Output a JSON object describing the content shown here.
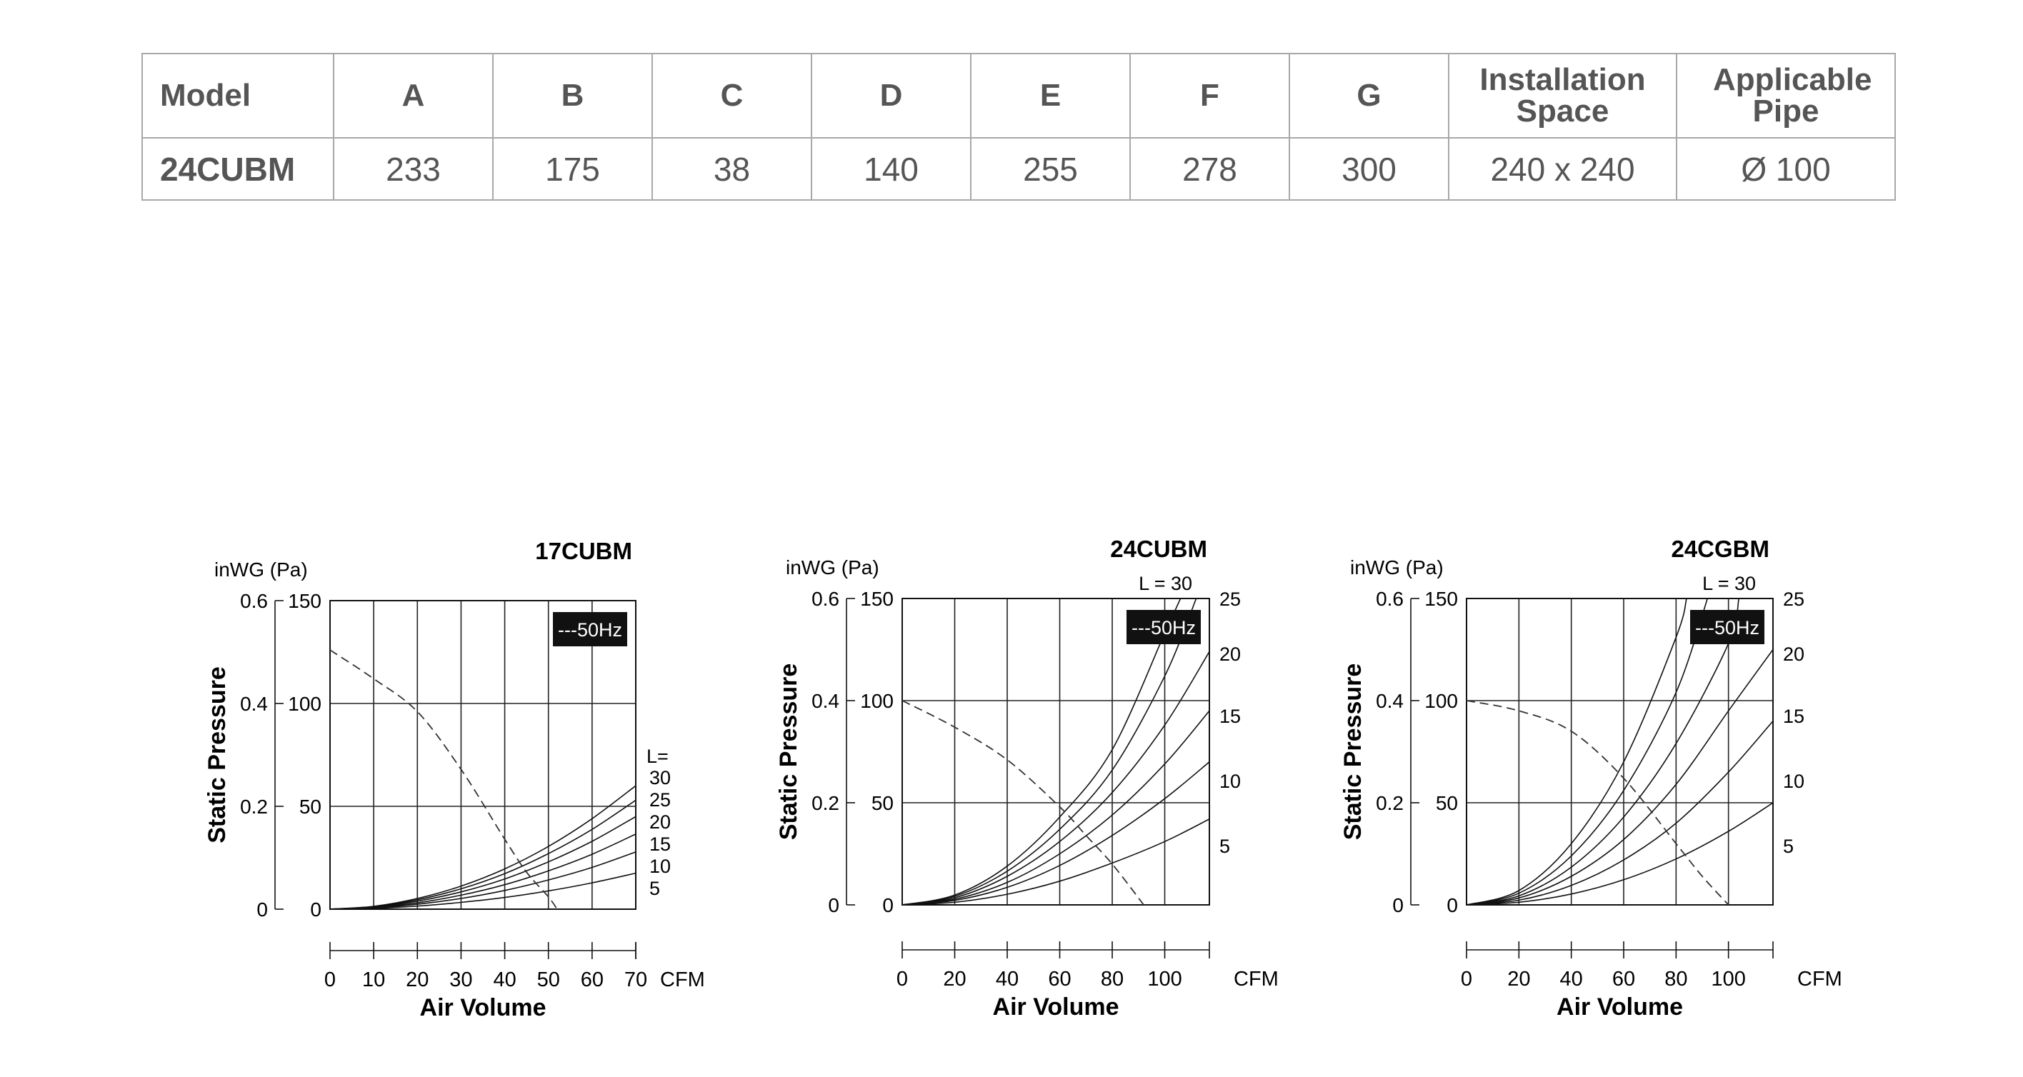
{
  "table": {
    "headers": [
      "Model",
      "A",
      "B",
      "C",
      "D",
      "E",
      "F",
      "G",
      "Installation Space",
      "Applicable Pipe"
    ],
    "rows": [
      [
        "24CUBM",
        "233",
        "175",
        "38",
        "140",
        "255",
        "278",
        "300",
        "240 x 240",
        "Ø 100"
      ]
    ]
  },
  "chart_data": [
    {
      "type": "line",
      "title": "17CUBM",
      "xlabel": "Air Volume",
      "x_unit": "CFM",
      "ylabel": "Static Pressure",
      "y_unit_label": "inWG (Pa)",
      "xlim": [
        0,
        70
      ],
      "ylim": [
        0,
        150
      ],
      "x_ticks": [
        0,
        10,
        20,
        30,
        40,
        50,
        60,
        70
      ],
      "y_ticks_pa": [
        0,
        50,
        100,
        150
      ],
      "y_ticks_inwg": [
        "0",
        "0.2",
        "0.4",
        "0.6"
      ],
      "grid": true,
      "legend_box": "---50Hz",
      "curve_label_prefix": "L=",
      "fan_curve": {
        "name": "---50Hz",
        "style": "dashed",
        "x": [
          0,
          10,
          20,
          30,
          40,
          45,
          50,
          52
        ],
        "y": [
          126,
          112,
          96,
          68,
          34,
          18,
          6,
          0
        ]
      },
      "series": [
        {
          "label": "30",
          "x": [
            0,
            10,
            20,
            30,
            40,
            50,
            60,
            70
          ],
          "y": [
            0,
            1.4,
            5.2,
            11.2,
            19.6,
            30.5,
            44,
            60
          ]
        },
        {
          "label": "25",
          "x": [
            0,
            10,
            20,
            30,
            40,
            50,
            60,
            70
          ],
          "y": [
            0,
            1.2,
            4.6,
            9.9,
            17.3,
            27,
            38.8,
            53
          ]
        },
        {
          "label": "20",
          "x": [
            0,
            10,
            20,
            30,
            40,
            50,
            60,
            70
          ],
          "y": [
            0,
            1,
            3.9,
            8.4,
            14.7,
            23,
            33,
            45
          ]
        },
        {
          "label": "15",
          "x": [
            0,
            10,
            20,
            30,
            40,
            50,
            60,
            70
          ],
          "y": [
            0,
            0.8,
            3.1,
            6.8,
            11.9,
            18.6,
            26.7,
            36.5
          ]
        },
        {
          "label": "10",
          "x": [
            0,
            10,
            20,
            30,
            40,
            50,
            60,
            70
          ],
          "y": [
            0,
            0.6,
            2.4,
            5.2,
            9.1,
            14.2,
            20.3,
            27.8
          ]
        },
        {
          "label": "5",
          "x": [
            0,
            10,
            20,
            30,
            40,
            50,
            60,
            70
          ],
          "y": [
            0,
            0.4,
            1.5,
            3.3,
            5.7,
            8.9,
            12.8,
            17.5
          ]
        }
      ]
    },
    {
      "type": "line",
      "title": "24CUBM",
      "xlabel": "Air Volume",
      "x_unit": "CFM",
      "ylabel": "Static Pressure",
      "y_unit_label": "inWG (Pa)",
      "xlim": [
        0,
        117
      ],
      "ylim": [
        0,
        150
      ],
      "x_ticks": [
        0,
        20,
        40,
        60,
        80,
        100
      ],
      "y_ticks_pa": [
        0,
        50,
        100,
        150
      ],
      "y_ticks_inwg": [
        "0",
        "0.2",
        "0.4",
        "0.6"
      ],
      "grid": true,
      "legend_box": "---50Hz",
      "curve_label_prefix": "L =",
      "fan_curve": {
        "name": "---50Hz",
        "style": "dashed",
        "x": [
          0,
          20,
          40,
          60,
          70,
          80,
          92
        ],
        "y": [
          100,
          87,
          71,
          48,
          34,
          20,
          0
        ]
      },
      "series": [
        {
          "label": "30",
          "x": [
            0,
            20,
            40,
            60,
            80,
            100,
            106
          ],
          "y": [
            0,
            4.8,
            19,
            43,
            76,
            133,
            150
          ]
        },
        {
          "label": "25",
          "x": [
            0,
            20,
            40,
            60,
            80,
            100,
            112
          ],
          "y": [
            0,
            4.2,
            16.5,
            37,
            66,
            112,
            150
          ]
        },
        {
          "label": "20",
          "x": [
            0,
            20,
            40,
            60,
            80,
            100,
            117
          ],
          "y": [
            0,
            3.5,
            14,
            31,
            55,
            88,
            124
          ]
        },
        {
          "label": "15",
          "x": [
            0,
            20,
            40,
            60,
            80,
            100,
            117
          ],
          "y": [
            0,
            2.8,
            11,
            25,
            44,
            69,
            95
          ]
        },
        {
          "label": "10",
          "x": [
            0,
            20,
            40,
            60,
            80,
            100,
            117
          ],
          "y": [
            0,
            2.2,
            8.6,
            19.3,
            34,
            52,
            70
          ]
        },
        {
          "label": "5",
          "x": [
            0,
            20,
            40,
            60,
            80,
            100,
            117
          ],
          "y": [
            0,
            1.3,
            5.2,
            11.6,
            20.5,
            31,
            42
          ]
        }
      ]
    },
    {
      "type": "line",
      "title": "24CGBM",
      "xlabel": "Air Volume",
      "x_unit": "CFM",
      "ylabel": "Static Pressure",
      "y_unit_label": "inWG (Pa)",
      "xlim": [
        0,
        117
      ],
      "ylim": [
        0,
        150
      ],
      "x_ticks": [
        0,
        20,
        40,
        60,
        80,
        100
      ],
      "y_ticks_pa": [
        0,
        50,
        100,
        150
      ],
      "y_ticks_inwg": [
        "0",
        "0.2",
        "0.4",
        "0.6"
      ],
      "grid": true,
      "legend_box": "---50Hz",
      "curve_label_prefix": "L =",
      "fan_curve": {
        "name": "---50Hz",
        "style": "dashed",
        "x": [
          0,
          20,
          40,
          60,
          80,
          90,
          100
        ],
        "y": [
          100,
          95,
          85,
          62,
          30,
          14,
          0
        ]
      },
      "series": [
        {
          "label": "30",
          "x": [
            0,
            20,
            40,
            60,
            80,
            84
          ],
          "y": [
            0,
            7,
            30,
            70,
            131,
            150
          ]
        },
        {
          "label": "25",
          "x": [
            0,
            20,
            40,
            60,
            80,
            92
          ],
          "y": [
            0,
            5.7,
            24,
            56,
            104,
            150
          ]
        },
        {
          "label": "20",
          "x": [
            0,
            20,
            40,
            60,
            80,
            100,
            104
          ],
          "y": [
            0,
            4.4,
            18.5,
            43,
            79,
            128,
            150
          ]
        },
        {
          "label": "15",
          "x": [
            0,
            20,
            40,
            60,
            80,
            100,
            117
          ],
          "y": [
            0,
            3.4,
            14,
            32,
            59,
            95,
            125
          ]
        },
        {
          "label": "10",
          "x": [
            0,
            20,
            40,
            60,
            80,
            100,
            117
          ],
          "y": [
            0,
            2.3,
            9.5,
            22,
            40,
            65,
            90
          ]
        },
        {
          "label": "5",
          "x": [
            0,
            20,
            40,
            60,
            80,
            100,
            117
          ],
          "y": [
            0,
            1.3,
            5.3,
            12.3,
            22.5,
            36,
            50
          ]
        }
      ]
    }
  ]
}
